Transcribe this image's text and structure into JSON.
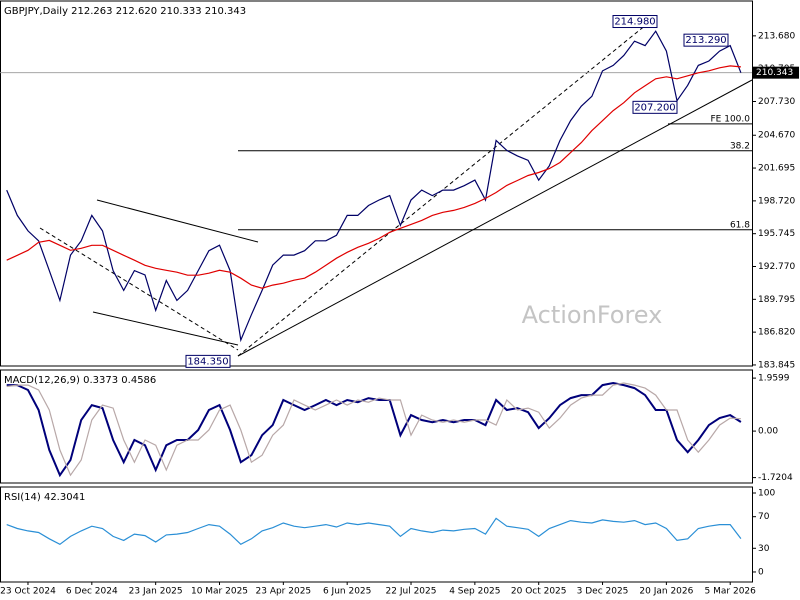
{
  "chart_data": [
    {
      "type": "line",
      "title": "GBPJPY,Daily  212.263 212.620 210.333 210.343",
      "ylim": [
        183.75,
        216.84
      ],
      "yticks": [
        {
          "value": 213.68,
          "label": "213.680"
        },
        210.705,
        {
          "value": 207.73,
          "label": "207.730"
        },
        {
          "value": 204.67,
          "label": "204.670"
        },
        201.695,
        {
          "value": 198.72,
          "label": "198.720"
        },
        195.745,
        {
          "value": 192.77,
          "label": "192.770"
        },
        189.795,
        {
          "value": 186.82,
          "label": "186.820"
        },
        183.845
      ],
      "series": [
        {
          "color": "#000066",
          "values": [
            199.7,
            197.4,
            196.0,
            195.1,
            192.4,
            189.7,
            193.8,
            195.1,
            197.4,
            196.0,
            192.4,
            190.6,
            192.4,
            192.0,
            188.8,
            191.5,
            189.7,
            190.6,
            192.4,
            194.2,
            194.7,
            192.4,
            186.1,
            188.4,
            190.6,
            192.9,
            193.8,
            193.8,
            194.2,
            195.1,
            195.1,
            195.6,
            197.4,
            197.4,
            198.3,
            198.8,
            199.2,
            196.5,
            198.8,
            199.7,
            199.2,
            199.7,
            199.7,
            200.1,
            200.6,
            198.8,
            204.2,
            203.3,
            202.8,
            202.4,
            200.6,
            201.9,
            204.2,
            206.0,
            207.3,
            208.2,
            210.5,
            211.0,
            211.9,
            213.2,
            212.8,
            214.1,
            212.3,
            207.8,
            209.2,
            211.0,
            211.4,
            212.3,
            212.8,
            210.343
          ]
        },
        {
          "color": "#e00000",
          "values": [
            193.34,
            193.79,
            194.24,
            194.96,
            195.14,
            194.69,
            194.24,
            194.42,
            194.69,
            194.69,
            194.24,
            193.79,
            193.34,
            192.88,
            192.61,
            192.43,
            192.25,
            191.98,
            191.98,
            192.16,
            192.43,
            192.25,
            191.71,
            191.08,
            190.8,
            191.08,
            191.26,
            191.53,
            191.71,
            192.25,
            192.88,
            193.52,
            194.06,
            194.51,
            194.87,
            195.32,
            195.87,
            196.23,
            196.59,
            196.95,
            197.4,
            197.68,
            197.86,
            198.13,
            198.49,
            198.94,
            199.48,
            200.12,
            200.57,
            201.02,
            201.29,
            201.65,
            202.2,
            203.1,
            204.0,
            205.09,
            205.99,
            206.9,
            207.62,
            208.52,
            209.16,
            209.79,
            209.97,
            209.79,
            210.06,
            210.33,
            210.51,
            210.78,
            210.96,
            210.87
          ]
        }
      ],
      "current_price": 210.343,
      "annotations": [
        {
          "value": 214.98,
          "label": "214.980"
        },
        {
          "value": 213.29,
          "label": "213.290"
        },
        {
          "value": 207.2,
          "label": "207.200"
        },
        {
          "value": 184.35,
          "label": "184.350"
        }
      ],
      "levels": [
        {
          "value": 205.7,
          "label": "FE 100.0"
        },
        {
          "value": 203.26,
          "label": "38.2"
        },
        {
          "value": 196.1,
          "label": "61.8"
        }
      ],
      "watermark": "ActionForex"
    },
    {
      "type": "line",
      "title": "MACD(12,26,9) 0.3373 0.4586",
      "ylim": [
        -1.92,
        2.26
      ],
      "yticks": [
        1.9599,
        {
          "value": 0,
          "label": "0.00"
        },
        -1.7204
      ],
      "series": [
        {
          "color": "#00007a",
          "values": [
            1.7,
            1.7,
            1.52,
            0.78,
            -0.7,
            -1.63,
            -1.07,
            0.41,
            0.96,
            0.85,
            -0.33,
            -1.15,
            -0.33,
            -0.52,
            -1.44,
            -0.52,
            -0.33,
            -0.33,
            0.04,
            0.78,
            0.96,
            0.04,
            -1.15,
            -0.89,
            -0.15,
            0.22,
            1.15,
            0.96,
            0.78,
            0.96,
            1.15,
            0.96,
            1.15,
            1.07,
            1.22,
            1.15,
            1.15,
            -0.15,
            0.59,
            0.41,
            0.33,
            0.41,
            0.33,
            0.41,
            0.41,
            0.22,
            1.15,
            0.78,
            0.85,
            0.7,
            0.11,
            0.48,
            0.96,
            1.22,
            1.33,
            1.33,
            1.7,
            1.78,
            1.7,
            1.59,
            1.33,
            0.78,
            0.78,
            -0.33,
            -0.78,
            -0.33,
            0.22,
            0.48,
            0.59,
            0.3373
          ]
        },
        {
          "color": "#b8a8a8",
          "values": [
            1.65,
            1.7,
            1.7,
            1.52,
            0.78,
            -0.7,
            -1.63,
            -1.07,
            0.41,
            0.96,
            0.85,
            -0.33,
            -1.15,
            -0.33,
            -0.52,
            -1.44,
            -0.52,
            -0.33,
            -0.33,
            0.04,
            0.78,
            0.96,
            0.04,
            -1.15,
            -0.89,
            -0.15,
            0.22,
            1.15,
            0.96,
            0.78,
            0.96,
            1.15,
            0.96,
            1.15,
            1.07,
            1.22,
            1.15,
            1.15,
            -0.15,
            0.59,
            0.41,
            0.33,
            0.41,
            0.33,
            0.41,
            0.41,
            0.22,
            1.15,
            0.78,
            0.85,
            0.7,
            0.11,
            0.48,
            0.96,
            1.22,
            1.33,
            1.33,
            1.7,
            1.78,
            1.7,
            1.59,
            1.33,
            0.78,
            0.78,
            -0.33,
            -0.78,
            -0.33,
            0.22,
            0.48,
            0.4586
          ]
        }
      ]
    },
    {
      "type": "line",
      "title": "RSI(14) 42.3041",
      "ylim": [
        -12.7,
        107.6
      ],
      "yticks": [
        100,
        70,
        30,
        0
      ],
      "categories": [
        null,
        null,
        "23 Oct 2024",
        null,
        null,
        null,
        null,
        null,
        "6 Dec 2024",
        null,
        null,
        null,
        null,
        null,
        "23 Jan 2025",
        null,
        null,
        null,
        null,
        null,
        "10 Mar 2025",
        null,
        null,
        null,
        null,
        null,
        "23 Apr 2025",
        null,
        null,
        null,
        null,
        null,
        "6 Jun 2025",
        null,
        null,
        null,
        null,
        null,
        "22 Jul 2025",
        null,
        null,
        null,
        null,
        null,
        "4 Sep 2025",
        null,
        null,
        null,
        null,
        null,
        "20 Oct 2025",
        null,
        null,
        null,
        null,
        null,
        "3 Dec 2025",
        null,
        null,
        null,
        null,
        null,
        "20 Jan 2026",
        null,
        null,
        null,
        null,
        null,
        "5 Mar 2026",
        null
      ],
      "series": [
        {
          "color": "#2a8fd6",
          "values": [
            60,
            55,
            52,
            50,
            42,
            35,
            45,
            52,
            58,
            55,
            45,
            40,
            48,
            46,
            38,
            47,
            48,
            50,
            55,
            60,
            58,
            48,
            35,
            42,
            52,
            56,
            62,
            58,
            56,
            58,
            60,
            57,
            62,
            60,
            62,
            60,
            58,
            45,
            55,
            52,
            50,
            53,
            52,
            54,
            55,
            48,
            68,
            58,
            56,
            54,
            45,
            55,
            60,
            65,
            63,
            62,
            66,
            64,
            63,
            65,
            60,
            62,
            55,
            40,
            42,
            55,
            58,
            60,
            60,
            42.3041
          ]
        }
      ]
    }
  ]
}
